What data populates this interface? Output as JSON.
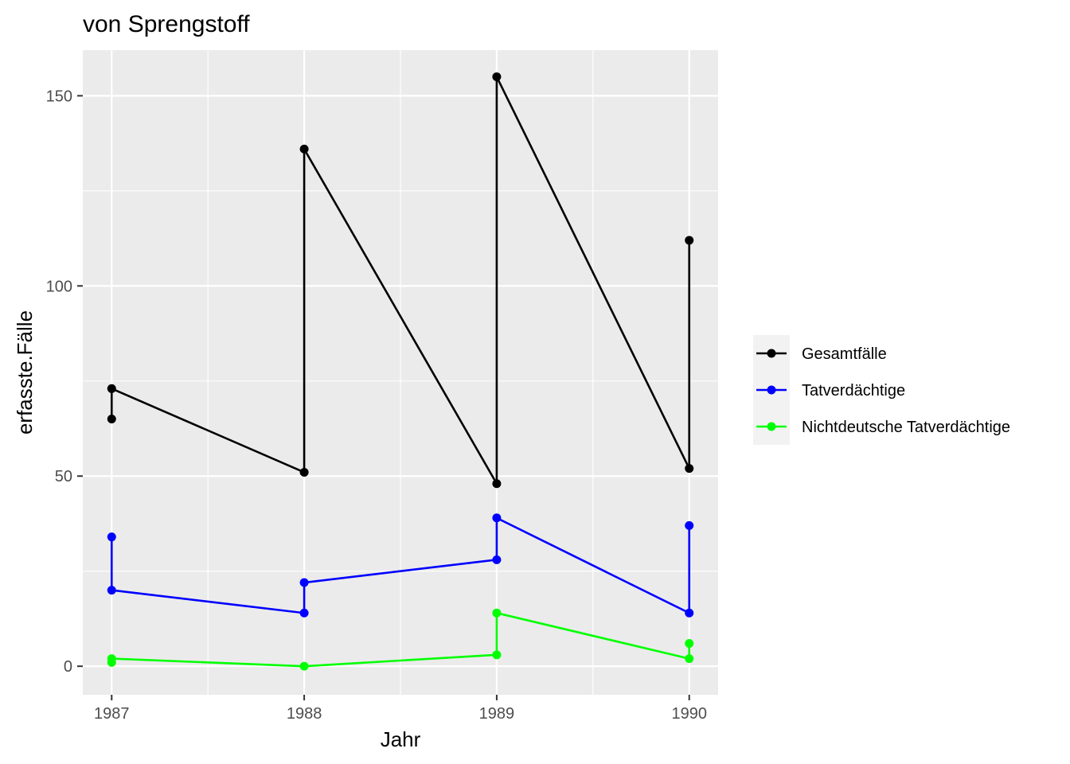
{
  "chart_data": {
    "type": "line",
    "title": "von Sprengstoff",
    "xlabel": "Jahr",
    "ylabel": "erfasste.Fälle",
    "xlim": [
      1986.85,
      1990.15
    ],
    "ylim": [
      -7.5,
      162
    ],
    "x_ticks": [
      1987,
      1988,
      1989,
      1990
    ],
    "x_tick_labels": [
      "1987",
      "1988",
      "1989",
      "1990"
    ],
    "y_ticks": [
      0,
      50,
      100,
      150
    ],
    "y_tick_labels": [
      "0",
      "50",
      "100",
      "150"
    ],
    "grid": true,
    "legend_position": "right",
    "series": [
      {
        "name": "Gesamtfälle",
        "color": "#000000",
        "points": [
          [
            1987,
            65
          ],
          [
            1987,
            73
          ],
          [
            1988,
            51
          ],
          [
            1988,
            136
          ],
          [
            1989,
            48
          ],
          [
            1989,
            155
          ],
          [
            1990,
            52
          ],
          [
            1990,
            112
          ]
        ]
      },
      {
        "name": "Tatverdächtige",
        "color": "#0000ff",
        "points": [
          [
            1987,
            34
          ],
          [
            1987,
            20
          ],
          [
            1988,
            14
          ],
          [
            1988,
            22
          ],
          [
            1989,
            28
          ],
          [
            1989,
            39
          ],
          [
            1990,
            14
          ],
          [
            1990,
            37
          ]
        ]
      },
      {
        "name": "Nichtdeutsche Tatverdächtige",
        "color": "#00ff00",
        "points": [
          [
            1987,
            1
          ],
          [
            1987,
            2
          ],
          [
            1988,
            0
          ],
          [
            1989,
            3
          ],
          [
            1989,
            14
          ],
          [
            1990,
            2
          ],
          [
            1990,
            6
          ]
        ]
      }
    ]
  }
}
